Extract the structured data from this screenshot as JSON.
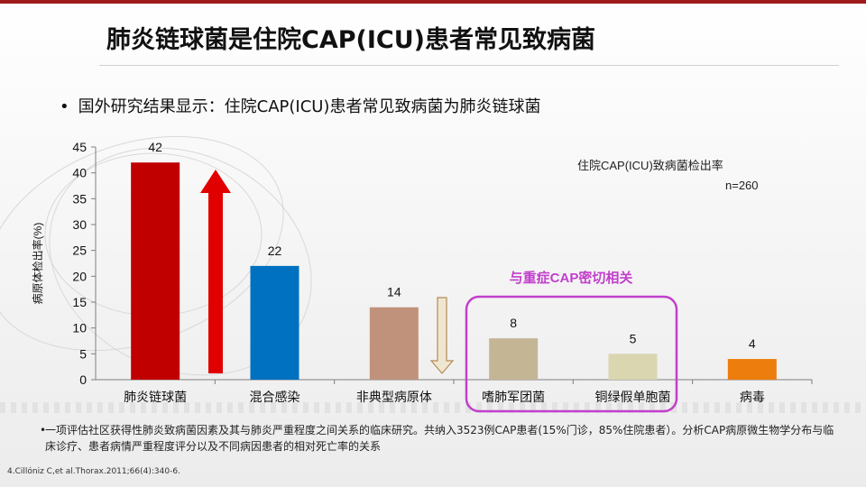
{
  "title": "肺炎链球菌是住院CAP(ICU)患者常见致病菌",
  "bullet": "国外研究结果显示：住院CAP(ICU)患者常见致病菌为肺炎链球菌",
  "bullet_dot": "•",
  "footnote_dot": "•",
  "footnote": "一项评估社区获得性肺炎致病菌因素及其与肺炎严重程度之间关系的临床研究。共纳入3523例CAP患者(15%门诊，85%住院患者）。分析CAP病原微生物学分布与临床诊疗、患者病情严重程度评分以及不同病因患者的相对死亡率的关系",
  "reference": "4.Cillóniz C,et al.Thorax.2011;66(4):340-6.",
  "highlight_label": "与重症CAP密切相关",
  "colors": {
    "title_bar": "#9e1b1b",
    "highlight": "#c23fcc",
    "up_arrow": "#e00000",
    "down_arrow_fill": "#efe6d2",
    "down_arrow_stroke": "#b58a54"
  },
  "chart_data": {
    "type": "bar",
    "categories": [
      "肺炎链球菌",
      "混合感染",
      "非典型病原体",
      "嗜肺军团菌",
      "铜绿假单胞菌",
      "病毒"
    ],
    "values": [
      42,
      22,
      14,
      8,
      5,
      4
    ],
    "colors": [
      "#c00000",
      "#0070c0",
      "#c0927c",
      "#c4b595",
      "#d9d6b0",
      "#ed7d0c"
    ],
    "ylabel": "病原体检出率(%)",
    "yticks": [
      0,
      5,
      10,
      15,
      20,
      25,
      30,
      35,
      40,
      45
    ],
    "ylim": [
      0,
      45
    ],
    "legend_title": "住院CAP(ICU)致病菌检出率",
    "legend_n": "n=260",
    "grid": false
  }
}
